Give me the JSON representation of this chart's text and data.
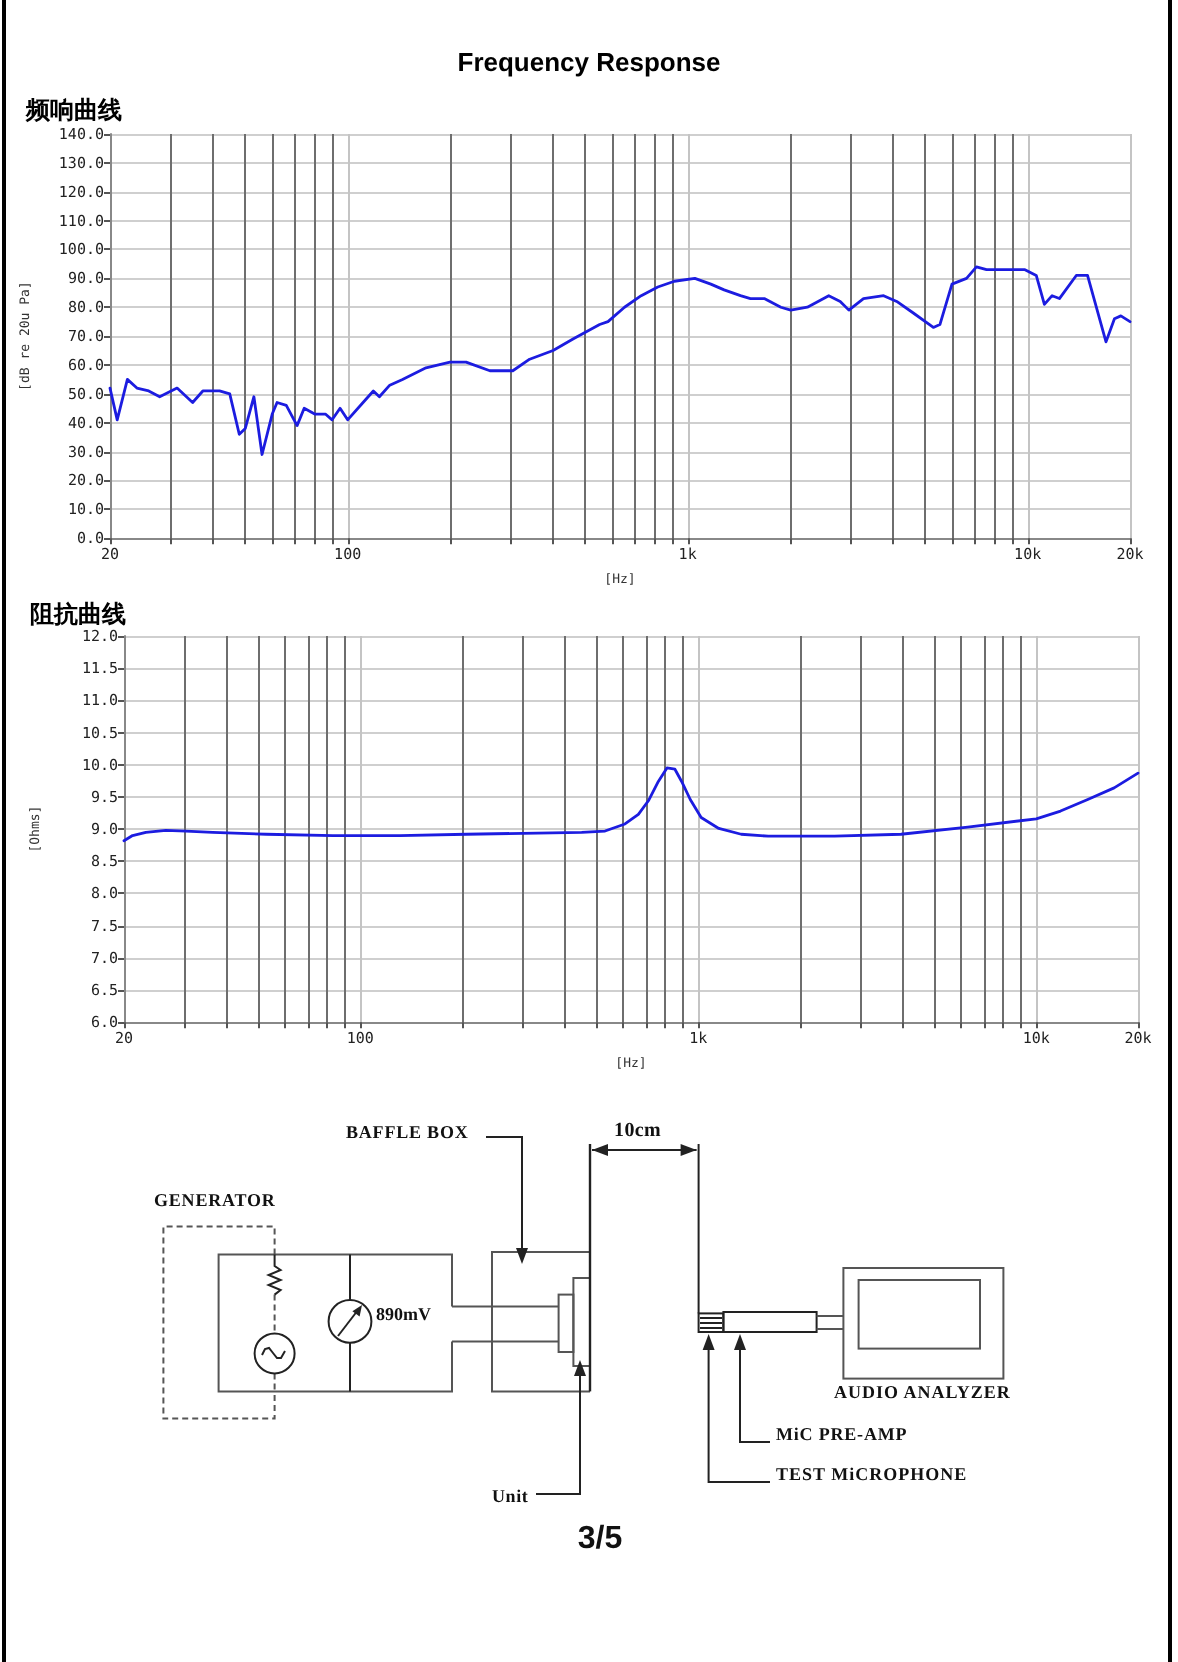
{
  "chart_data": [
    {
      "type": "line",
      "title": "Frequency Response",
      "subtitle": "频响曲线",
      "xlabel": "[Hz]",
      "ylabel": "[dB re 20u Pa]",
      "log": "x",
      "grid": true,
      "color": "#1c1ce0",
      "xlim": [
        20,
        20000
      ],
      "xticks": [
        {
          "value": 20,
          "label": "20"
        },
        {
          "value": 30,
          "label": null
        },
        {
          "value": 40,
          "label": null
        },
        {
          "value": 50,
          "label": null
        },
        {
          "value": 60,
          "label": null
        },
        {
          "value": 70,
          "label": null
        },
        {
          "value": 80,
          "label": null
        },
        {
          "value": 90,
          "label": null
        },
        {
          "value": 100,
          "label": "100"
        },
        {
          "value": 200,
          "label": null
        },
        {
          "value": 300,
          "label": null
        },
        {
          "value": 400,
          "label": null
        },
        {
          "value": 500,
          "label": null
        },
        {
          "value": 600,
          "label": null
        },
        {
          "value": 700,
          "label": null
        },
        {
          "value": 800,
          "label": null
        },
        {
          "value": 900,
          "label": null
        },
        {
          "value": 1000,
          "label": "1k"
        },
        {
          "value": 2000,
          "label": null
        },
        {
          "value": 3000,
          "label": null
        },
        {
          "value": 4000,
          "label": null
        },
        {
          "value": 5000,
          "label": null
        },
        {
          "value": 6000,
          "label": null
        },
        {
          "value": 7000,
          "label": null
        },
        {
          "value": 8000,
          "label": null
        },
        {
          "value": 9000,
          "label": null
        },
        {
          "value": 10000,
          "label": "10k"
        },
        {
          "value": 20000,
          "label": "20k"
        }
      ],
      "ylim": [
        0,
        140
      ],
      "yticks": [
        {
          "value": 0,
          "label": "0.0"
        },
        {
          "value": 10,
          "label": "10.0"
        },
        {
          "value": 20,
          "label": "20.0"
        },
        {
          "value": 30,
          "label": "30.0"
        },
        {
          "value": 40,
          "label": "40.0"
        },
        {
          "value": 50,
          "label": "50.0"
        },
        {
          "value": 60,
          "label": "60.0"
        },
        {
          "value": 70,
          "label": "70.0"
        },
        {
          "value": 80,
          "label": "80.0"
        },
        {
          "value": 90,
          "label": "90.0"
        },
        {
          "value": 100,
          "label": "100.0"
        },
        {
          "value": 110,
          "label": "110.0"
        },
        {
          "value": 120,
          "label": "120.0"
        },
        {
          "value": 130,
          "label": "130.0"
        },
        {
          "value": 140,
          "label": "140.0"
        }
      ],
      "x": [
        20,
        21,
        22.5,
        24,
        26,
        28,
        31.5,
        35,
        37.5,
        42,
        45,
        48,
        50,
        53,
        56,
        60,
        62,
        66,
        71,
        74.5,
        80,
        86,
        90,
        95,
        100,
        111,
        119,
        124,
        133,
        145,
        170,
        200,
        223,
        262,
        306,
        343,
        402,
        460,
        551,
        583,
        652,
        730,
        817,
        914,
        1050,
        1170,
        1280,
        1430,
        1530,
        1680,
        1880,
        2010,
        2250,
        2600,
        2810,
        2980,
        3290,
        3770,
        4120,
        4610,
        5280,
        5520,
        5990,
        6610,
        7070,
        7570,
        8280,
        9060,
        9820,
        10600,
        11200,
        11800,
        12400,
        13900,
        15000,
        17000,
        18000,
        18800,
        20000
      ],
      "values": [
        52,
        41,
        55,
        52,
        51,
        49,
        52,
        47,
        51,
        51,
        50,
        36,
        38,
        49,
        29,
        43,
        47,
        46,
        39,
        45,
        43,
        43,
        41,
        45,
        41,
        47,
        51,
        49,
        53,
        55,
        59,
        61,
        61,
        58,
        58,
        62,
        65,
        69,
        74,
        75,
        80,
        84,
        87,
        89,
        90,
        88,
        86,
        84,
        83,
        83,
        80,
        79,
        80,
        84,
        82,
        79,
        83,
        84,
        82,
        78,
        73,
        74,
        88,
        90,
        94,
        93,
        93,
        93,
        93,
        91,
        81,
        84,
        83,
        91,
        91,
        68,
        76,
        77,
        75
      ]
    },
    {
      "type": "line",
      "title": "阻抗曲线",
      "xlabel": "[Hz]",
      "ylabel": "[Ohms]",
      "log": "x",
      "grid": true,
      "color": "#1c1ce0",
      "xlim": [
        20,
        20000
      ],
      "xticks": [
        {
          "value": 20,
          "label": "20"
        },
        {
          "value": 30,
          "label": null
        },
        {
          "value": 40,
          "label": null
        },
        {
          "value": 50,
          "label": null
        },
        {
          "value": 60,
          "label": null
        },
        {
          "value": 70,
          "label": null
        },
        {
          "value": 80,
          "label": null
        },
        {
          "value": 90,
          "label": null
        },
        {
          "value": 100,
          "label": "100"
        },
        {
          "value": 200,
          "label": null
        },
        {
          "value": 300,
          "label": null
        },
        {
          "value": 400,
          "label": null
        },
        {
          "value": 500,
          "label": null
        },
        {
          "value": 600,
          "label": null
        },
        {
          "value": 700,
          "label": null
        },
        {
          "value": 800,
          "label": null
        },
        {
          "value": 900,
          "label": null
        },
        {
          "value": 1000,
          "label": "1k"
        },
        {
          "value": 2000,
          "label": null
        },
        {
          "value": 3000,
          "label": null
        },
        {
          "value": 4000,
          "label": null
        },
        {
          "value": 5000,
          "label": null
        },
        {
          "value": 6000,
          "label": null
        },
        {
          "value": 7000,
          "label": null
        },
        {
          "value": 8000,
          "label": null
        },
        {
          "value": 9000,
          "label": null
        },
        {
          "value": 10000,
          "label": "10k"
        },
        {
          "value": 20000,
          "label": "20k"
        }
      ],
      "ylim": [
        6,
        12
      ],
      "yticks": [
        {
          "value": 6,
          "label": "6.0"
        },
        {
          "value": 6.5,
          "label": "6.5"
        },
        {
          "value": 7,
          "label": "7.0"
        },
        {
          "value": 7.5,
          "label": "7.5"
        },
        {
          "value": 8,
          "label": "8.0"
        },
        {
          "value": 8.5,
          "label": "8.5"
        },
        {
          "value": 9,
          "label": "9.0"
        },
        {
          "value": 9.5,
          "label": "9.5"
        },
        {
          "value": 10,
          "label": "10.0"
        },
        {
          "value": 10.5,
          "label": "10.5"
        },
        {
          "value": 11,
          "label": "11.0"
        },
        {
          "value": 11.5,
          "label": "11.5"
        },
        {
          "value": 12,
          "label": "12.0"
        }
      ],
      "x": [
        20,
        21.2,
        23.2,
        26.6,
        30.5,
        36.6,
        52.7,
        83,
        131,
        206,
        452,
        530,
        607,
        665,
        712,
        762,
        808,
        853,
        893,
        947,
        1020,
        1150,
        1340,
        1610,
        2530,
        3980,
        6270,
        10000,
        11800,
        14200,
        17000,
        20000
      ],
      "values": [
        8.82,
        8.9,
        8.95,
        8.98,
        8.97,
        8.95,
        8.92,
        8.9,
        8.9,
        8.92,
        8.95,
        8.97,
        9.08,
        9.23,
        9.44,
        9.74,
        9.95,
        9.93,
        9.74,
        9.46,
        9.18,
        9.01,
        8.92,
        8.89,
        8.89,
        8.92,
        9.03,
        9.16,
        9.28,
        9.46,
        9.64,
        9.87
      ]
    },
    {
      "type": "other",
      "annotations": [
        "GENERATOR",
        "BAFFLE BOX",
        "10cm",
        "890mV",
        "AUDIO ANALYZER",
        "MiC PRE-AMP",
        "TEST MiCROPHONE",
        "Unit",
        "3/5"
      ]
    }
  ]
}
